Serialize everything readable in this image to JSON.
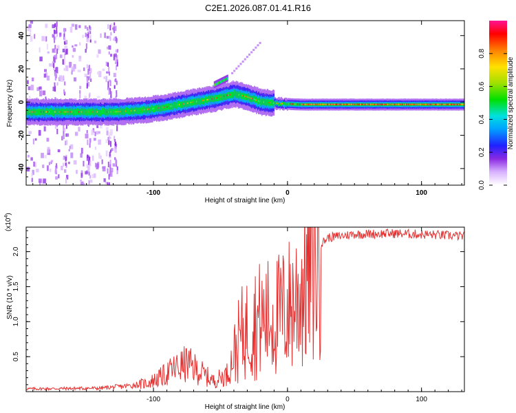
{
  "figure": {
    "title": "C2E1.2026.087.01.41.R16"
  },
  "chart_data": [
    {
      "type": "heatmap",
      "xlabel": "Height of straight line (km)",
      "ylabel": "Frequency (Hz)",
      "xlim": [
        -195,
        132
      ],
      "ylim": [
        -50,
        49
      ],
      "xticks": [
        -100,
        0,
        100
      ],
      "xticklabels": [
        "-100",
        "0",
        "100"
      ],
      "yticks": [
        -40,
        -20,
        0,
        20,
        40
      ],
      "yticklabels": [
        "-40",
        "-20",
        "0",
        "20",
        "40"
      ],
      "ridge": {
        "description_points": [
          {
            "x": -195,
            "y": -6
          },
          {
            "x": -160,
            "y": -6
          },
          {
            "x": -130,
            "y": -6
          },
          {
            "x": -110,
            "y": -5
          },
          {
            "x": -90,
            "y": -3
          },
          {
            "x": -70,
            "y": 0
          },
          {
            "x": -55,
            "y": 2
          },
          {
            "x": -40,
            "y": 5
          },
          {
            "x": -30,
            "y": 3
          },
          {
            "x": -20,
            "y": 0
          },
          {
            "x": -5,
            "y": -1
          },
          {
            "x": 10,
            "y": -1.5
          },
          {
            "x": 40,
            "y": -1.5
          },
          {
            "x": 80,
            "y": -1.5
          },
          {
            "x": 132,
            "y": -1.5
          }
        ],
        "branch_points": [
          {
            "x": -55,
            "y": 10
          },
          {
            "x": -45,
            "y": 14
          }
        ]
      },
      "noise_band": {
        "x_from": -195,
        "x_to": -128
      },
      "colorbar": {
        "label": "Normalized spectral amplitude",
        "range": [
          0,
          1
        ],
        "ticks": [
          0.0,
          0.2,
          0.4,
          0.6,
          0.8
        ],
        "ticklabels": [
          "0.0",
          "0.2",
          "0.4",
          "0.6",
          "0.8"
        ]
      }
    },
    {
      "type": "line",
      "xlabel": "Height of straight line (km)",
      "ylabel": "SNR (10 * v/v)",
      "yscale_label": "(x10",
      "yscale_exp": "4",
      "yscale_close": ")",
      "xlim": [
        -195,
        132
      ],
      "ylim": [
        0,
        23500
      ],
      "xticks": [
        -100,
        0,
        100
      ],
      "xticklabels": [
        "-100",
        "0",
        "100"
      ],
      "yticks": [
        5000,
        10000,
        15000,
        20000
      ],
      "yticklabels": [
        "0.5",
        "1.0",
        "1.5",
        "2.0"
      ],
      "color": "#e53030",
      "series": [
        {
          "name": "SNR",
          "envelope": [
            {
              "x": -195,
              "y": 400
            },
            {
              "x": -140,
              "y": 500
            },
            {
              "x": -120,
              "y": 800
            },
            {
              "x": -105,
              "y": 1200
            },
            {
              "x": -95,
              "y": 2000
            },
            {
              "x": -85,
              "y": 3200
            },
            {
              "x": -75,
              "y": 4000
            },
            {
              "x": -65,
              "y": 2800
            },
            {
              "x": -55,
              "y": 1500
            },
            {
              "x": -45,
              "y": 2500
            },
            {
              "x": -35,
              "y": 8000
            },
            {
              "x": -25,
              "y": 10000
            },
            {
              "x": -15,
              "y": 10500
            },
            {
              "x": -5,
              "y": 11000
            },
            {
              "x": 5,
              "y": 13000
            },
            {
              "x": 15,
              "y": 16500
            },
            {
              "x": 22,
              "y": 20500
            },
            {
              "x": 30,
              "y": 22000
            },
            {
              "x": 50,
              "y": 22500
            },
            {
              "x": 80,
              "y": 22600
            },
            {
              "x": 110,
              "y": 22400
            },
            {
              "x": 132,
              "y": 22200
            }
          ]
        }
      ]
    }
  ]
}
